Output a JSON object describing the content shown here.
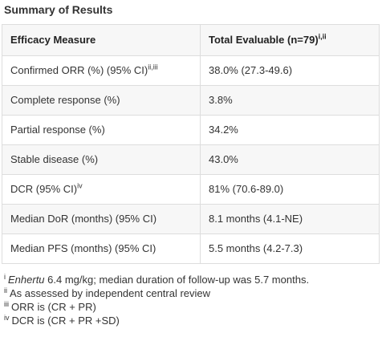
{
  "title": "Summary of Results",
  "table": {
    "header": {
      "col1": "Efficacy Measure",
      "col2": "Total Evaluable (n=79)",
      "col2_sup": "i,ii"
    },
    "rows": [
      {
        "measure": "Confirmed ORR (%) (95% CI)",
        "sup": "ii,iii",
        "value": "38.0% (27.3-49.6)"
      },
      {
        "measure": "Complete response (%)",
        "sup": "",
        "value": "3.8%"
      },
      {
        "measure": "Partial response (%)",
        "sup": "",
        "value": "34.2%"
      },
      {
        "measure": "Stable disease (%)",
        "sup": "",
        "value": "43.0%"
      },
      {
        "measure": "DCR (95% CI)",
        "sup": "iv",
        "value": "81% (70.6-89.0)"
      },
      {
        "measure": "Median DoR (months) (95% CI)",
        "sup": "",
        "value": "8.1 months (4.1-NE)"
      },
      {
        "measure": "Median PFS (months) (95% CI)",
        "sup": "",
        "value": "5.5 months (4.2-7.3)"
      }
    ]
  },
  "footnotes": [
    {
      "mark": "i",
      "italic": "Enhertu",
      "text": " 6.4 mg/kg; median duration of follow-up was 5.7 months."
    },
    {
      "mark": "ii",
      "italic": "",
      "text": "As assessed by independent central review"
    },
    {
      "mark": "iii",
      "italic": "",
      "text": "ORR is (CR + PR)"
    },
    {
      "mark": "iv",
      "italic": "",
      "text": "DCR is (CR + PR +SD)"
    }
  ]
}
